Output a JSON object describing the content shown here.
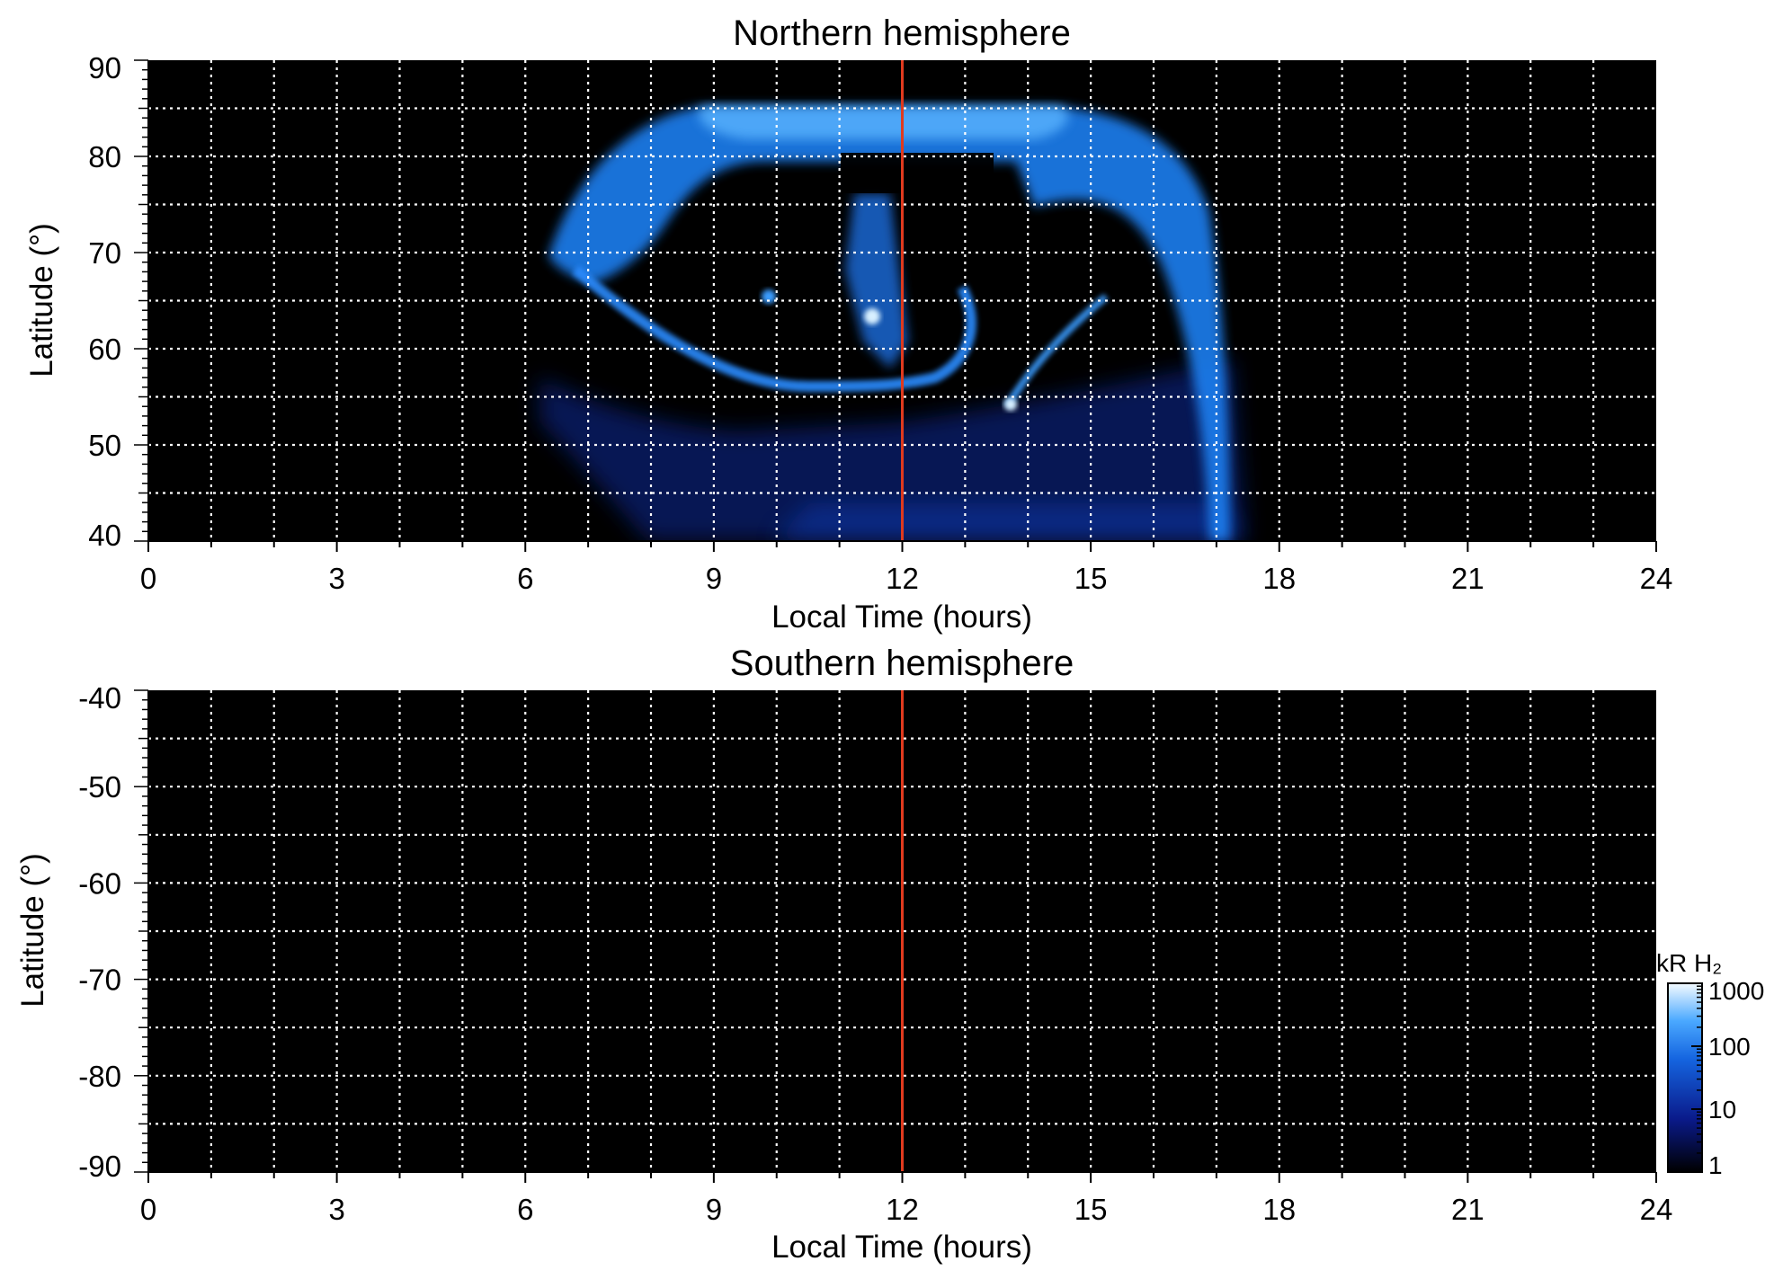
{
  "chart_data": [
    {
      "type": "heatmap",
      "title": "Northern hemisphere",
      "xlabel": "Local Time (hours)",
      "ylabel": "Latitude (°)",
      "xlim": [
        0,
        24
      ],
      "ylim": [
        40,
        90
      ],
      "xticks": [
        "0",
        "3",
        "6",
        "9",
        "12",
        "15",
        "18",
        "21",
        "24"
      ],
      "yticks": [
        "40",
        "50",
        "60",
        "70",
        "80",
        "90"
      ],
      "grid": true,
      "marker_line": {
        "x": 12,
        "color": "#e03a1e"
      },
      "background_color": "#000000",
      "features": [
        {
          "name": "main oval arc",
          "lt_range": [
            6.5,
            17.4
          ],
          "lat_peak": 85,
          "lat_edges": 55
        },
        {
          "name": "dayside bright spot",
          "lt": 11.6,
          "lat": 62.5
        },
        {
          "name": "afternoon spot",
          "lt": 13.7,
          "lat": 53.5
        }
      ]
    },
    {
      "type": "heatmap",
      "title": "Southern hemisphere",
      "xlabel": "Local Time (hours)",
      "ylabel": "Latitude (°)",
      "xlim": [
        0,
        24
      ],
      "ylim": [
        -90,
        -40
      ],
      "xticks": [
        "0",
        "3",
        "6",
        "9",
        "12",
        "15",
        "18",
        "21",
        "24"
      ],
      "yticks": [
        "-40",
        "-50",
        "-60",
        "-70",
        "-80",
        "-90"
      ],
      "grid": true,
      "marker_line": {
        "x": 12,
        "color": "#e03a1e"
      },
      "background_color": "#000000"
    }
  ],
  "colorbar": {
    "label": "kR H₂",
    "scale": "log",
    "range": [
      1,
      1000
    ],
    "ticks": [
      "1000",
      "100",
      "10",
      "1"
    ],
    "colors": [
      "#000000",
      "#0a1a8a",
      "#1565e0",
      "#4aa8ff",
      "#f4fbff"
    ]
  }
}
